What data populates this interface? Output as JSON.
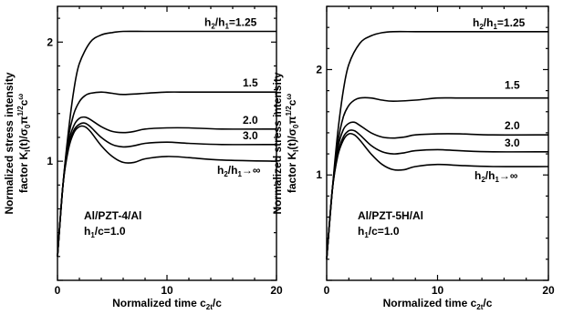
{
  "chart_data": [
    {
      "type": "line",
      "xlabel": "Normalized time c₂t/c",
      "ylabel_line1": "Normalized stress intensity",
      "ylabel_line2": "factor K_I(t)/σ₀π^1/2c^ω",
      "xlim": [
        0,
        20
      ],
      "ylim": [
        0,
        2.3
      ],
      "xticks": [
        0,
        10,
        20
      ],
      "yticks": [
        1,
        2
      ],
      "material": "Al/PZT-4/Al",
      "ratio": "h₁/c=1.0",
      "grid": false,
      "series": [
        {
          "label": "h₂/h₁=1.25",
          "x": [
            0,
            0.5,
            1,
            1.5,
            2,
            3,
            4,
            5,
            6,
            8,
            10,
            12,
            15,
            20
          ],
          "y": [
            0.2,
            0.8,
            1.25,
            1.6,
            1.82,
            2.0,
            2.06,
            2.08,
            2.09,
            2.09,
            2.09,
            2.09,
            2.09,
            2.09
          ]
        },
        {
          "label": "1.5",
          "x": [
            0,
            0.5,
            1,
            1.5,
            2,
            2.5,
            3,
            4,
            5,
            6,
            8,
            10,
            12,
            15,
            20
          ],
          "y": [
            0.2,
            0.8,
            1.2,
            1.4,
            1.5,
            1.55,
            1.57,
            1.58,
            1.57,
            1.56,
            1.57,
            1.58,
            1.58,
            1.58,
            1.58
          ]
        },
        {
          "label": "2.0",
          "x": [
            0,
            0.5,
            1,
            1.5,
            2,
            2.5,
            3,
            4,
            5,
            6,
            7,
            8,
            10,
            12,
            15,
            20
          ],
          "y": [
            0.2,
            0.8,
            1.15,
            1.3,
            1.36,
            1.37,
            1.35,
            1.29,
            1.25,
            1.24,
            1.25,
            1.27,
            1.28,
            1.28,
            1.27,
            1.27
          ]
        },
        {
          "label": "3.0",
          "x": [
            0,
            0.5,
            1,
            1.5,
            2,
            2.5,
            3,
            4,
            5,
            6,
            7,
            8,
            10,
            12,
            15,
            20
          ],
          "y": [
            0.2,
            0.8,
            1.12,
            1.26,
            1.31,
            1.32,
            1.29,
            1.2,
            1.14,
            1.12,
            1.13,
            1.15,
            1.16,
            1.15,
            1.14,
            1.14
          ]
        },
        {
          "label": "h₂/h₁→∞",
          "x": [
            0,
            0.5,
            1,
            1.5,
            2,
            2.5,
            3,
            4,
            5,
            6,
            7,
            8,
            10,
            12,
            15,
            20
          ],
          "y": [
            0.2,
            0.8,
            1.1,
            1.24,
            1.29,
            1.29,
            1.25,
            1.13,
            1.04,
            0.99,
            0.99,
            1.02,
            1.04,
            1.03,
            1.01,
            1.0
          ]
        }
      ]
    },
    {
      "type": "line",
      "xlabel": "Normalized time c₂t/c",
      "ylabel_line1": "Normalized stress intensity",
      "ylabel_line2": "factor K_I(t)/σ₀π^1/2c^ω",
      "xlim": [
        0,
        20
      ],
      "ylim": [
        0,
        2.6
      ],
      "xticks": [
        0,
        10,
        20
      ],
      "yticks": [
        1,
        2
      ],
      "material": "Al/PZT-5H/Al",
      "ratio": "h₁/c=1.0",
      "grid": false,
      "series": [
        {
          "label": "h₂/h₁=1.25",
          "x": [
            0,
            0.5,
            1,
            1.5,
            2,
            3,
            4,
            5,
            6,
            8,
            10,
            12,
            15,
            20
          ],
          "y": [
            0.2,
            0.85,
            1.4,
            1.8,
            2.05,
            2.25,
            2.32,
            2.35,
            2.36,
            2.36,
            2.36,
            2.36,
            2.36,
            2.36
          ]
        },
        {
          "label": "1.5",
          "x": [
            0,
            0.5,
            1,
            1.5,
            2,
            2.5,
            3,
            4,
            5,
            6,
            8,
            10,
            12,
            15,
            20
          ],
          "y": [
            0.2,
            0.85,
            1.3,
            1.55,
            1.66,
            1.71,
            1.73,
            1.73,
            1.71,
            1.7,
            1.71,
            1.73,
            1.73,
            1.73,
            1.73
          ]
        },
        {
          "label": "2.0",
          "x": [
            0,
            0.5,
            1,
            1.5,
            2,
            2.5,
            3,
            4,
            5,
            6,
            7,
            8,
            10,
            12,
            15,
            20
          ],
          "y": [
            0.2,
            0.85,
            1.25,
            1.43,
            1.49,
            1.5,
            1.47,
            1.4,
            1.36,
            1.35,
            1.36,
            1.38,
            1.39,
            1.39,
            1.38,
            1.38
          ]
        },
        {
          "label": "3.0",
          "x": [
            0,
            0.5,
            1,
            1.5,
            2,
            2.5,
            3,
            4,
            5,
            6,
            7,
            8,
            10,
            12,
            15,
            20
          ],
          "y": [
            0.2,
            0.85,
            1.2,
            1.36,
            1.42,
            1.42,
            1.38,
            1.28,
            1.22,
            1.2,
            1.21,
            1.23,
            1.24,
            1.23,
            1.22,
            1.22
          ]
        },
        {
          "label": "h₂/h₁→∞",
          "x": [
            0,
            0.5,
            1,
            1.5,
            2,
            2.5,
            3,
            4,
            5,
            6,
            7,
            8,
            10,
            12,
            15,
            20
          ],
          "y": [
            0.2,
            0.85,
            1.18,
            1.33,
            1.39,
            1.38,
            1.33,
            1.2,
            1.1,
            1.05,
            1.05,
            1.08,
            1.1,
            1.09,
            1.08,
            1.08
          ]
        }
      ]
    }
  ]
}
